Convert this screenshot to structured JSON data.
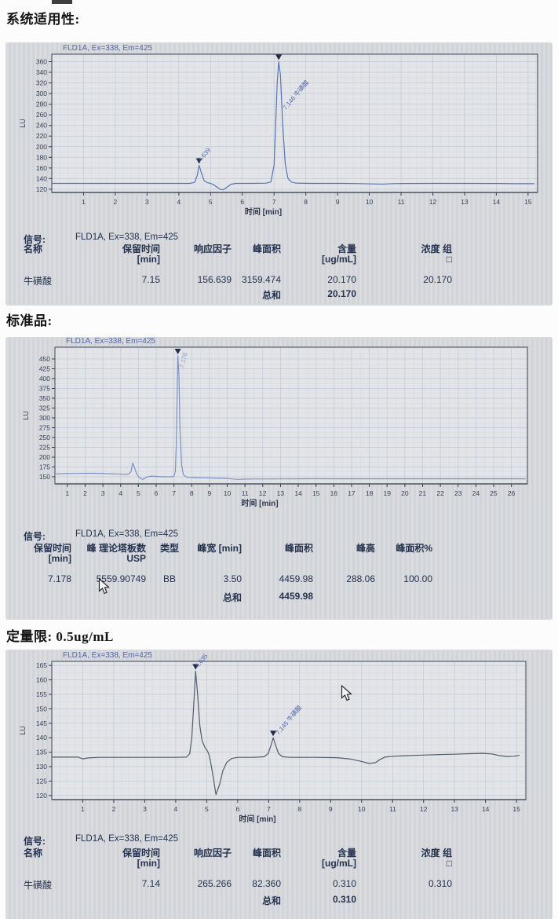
{
  "sections": [
    {
      "title": "系统适用性:"
    },
    {
      "title": "标准品:"
    },
    {
      "title": "定量限: 0.5ug/mL"
    }
  ],
  "chart_data": [
    {
      "type": "line",
      "title": "FLD1A, Ex=338, Em=425",
      "xlabel": "时间 [min]",
      "ylabel": "LU",
      "xlim": [
        0,
        15.3
      ],
      "ylim": [
        114,
        374
      ],
      "x_ticks": [
        1,
        2,
        3,
        4,
        5,
        6,
        7,
        8,
        9,
        10,
        11,
        12,
        13,
        14,
        15
      ],
      "y_ticks": [
        120,
        140,
        160,
        180,
        200,
        220,
        240,
        260,
        280,
        300,
        320,
        340,
        360
      ],
      "minor_x": 0.25,
      "minor_y": 10,
      "grid": true,
      "legend_position": "none",
      "series": [
        {
          "name": "FLD1A signal",
          "points": [
            [
              0,
              131
            ],
            [
              1,
              131
            ],
            [
              2,
              131
            ],
            [
              3,
              131
            ],
            [
              4,
              131
            ],
            [
              4.35,
              131
            ],
            [
              4.5,
              133
            ],
            [
              4.58,
              146
            ],
            [
              4.639,
              165
            ],
            [
              4.71,
              151
            ],
            [
              4.8,
              136
            ],
            [
              4.9,
              132.5
            ],
            [
              5.0,
              131
            ],
            [
              5.08,
              129
            ],
            [
              5.18,
              125
            ],
            [
              5.3,
              120
            ],
            [
              5.4,
              119
            ],
            [
              5.52,
              124
            ],
            [
              5.65,
              129.5
            ],
            [
              5.8,
              131
            ],
            [
              6.3,
              131
            ],
            [
              6.75,
              131.5
            ],
            [
              6.9,
              134
            ],
            [
              7.0,
              165
            ],
            [
              7.05,
              240
            ],
            [
              7.1,
              320
            ],
            [
              7.146,
              360
            ],
            [
              7.2,
              335
            ],
            [
              7.27,
              245
            ],
            [
              7.35,
              168
            ],
            [
              7.44,
              140
            ],
            [
              7.55,
              133.5
            ],
            [
              7.7,
              131.5
            ],
            [
              8.2,
              131
            ],
            [
              9.2,
              131
            ],
            [
              9.7,
              130.6
            ],
            [
              10.15,
              130
            ],
            [
              10.45,
              129.8
            ],
            [
              10.75,
              130.6
            ],
            [
              11.2,
              130.9
            ],
            [
              12,
              131
            ],
            [
              13,
              131
            ],
            [
              14,
              130.8
            ],
            [
              14.6,
              130.4
            ],
            [
              15.2,
              130.4
            ]
          ]
        }
      ],
      "peaks": [
        {
          "x": 4.639,
          "y": 165,
          "label": "4.639",
          "dx": 2,
          "dy": -4,
          "rot": -50,
          "faint": false
        },
        {
          "x": 7.146,
          "y": 360,
          "label": "7.146 牛磺酸",
          "dx": 9,
          "dy": 62,
          "rot": -50,
          "faint": false
        }
      ]
    },
    {
      "type": "line",
      "title": "FLD1A, Ex=338, Em=425",
      "xlabel": "时间 [min]",
      "ylabel": "LU",
      "xlim": [
        0.3,
        26.9
      ],
      "ylim": [
        132,
        480
      ],
      "x_ticks": [
        1,
        2,
        3,
        4,
        5,
        6,
        7,
        8,
        9,
        10,
        11,
        12,
        13,
        14,
        15,
        16,
        17,
        18,
        19,
        20,
        21,
        22,
        23,
        24,
        25,
        26
      ],
      "y_ticks": [
        150,
        175,
        200,
        225,
        250,
        275,
        300,
        325,
        350,
        375,
        400,
        425,
        450
      ],
      "minor_x": 0.5,
      "minor_y": 12.5,
      "grid": true,
      "legend_position": "none",
      "series": [
        {
          "name": "FLD1A signal",
          "points": [
            [
              0.3,
              157
            ],
            [
              0.8,
              158
            ],
            [
              1.5,
              158.6
            ],
            [
              2.2,
              159
            ],
            [
              2.8,
              158.8
            ],
            [
              3.4,
              157.8
            ],
            [
              4.0,
              156.6
            ],
            [
              4.3,
              156
            ],
            [
              4.45,
              157
            ],
            [
              4.58,
              163
            ],
            [
              4.68,
              185
            ],
            [
              4.78,
              173
            ],
            [
              4.9,
              158
            ],
            [
              5.0,
              150.5
            ],
            [
              5.12,
              146
            ],
            [
              5.25,
              143.5
            ],
            [
              5.4,
              147
            ],
            [
              5.55,
              150.5
            ],
            [
              5.75,
              151.8
            ],
            [
              6.0,
              151
            ],
            [
              6.4,
              150
            ],
            [
              6.8,
              150
            ],
            [
              7.0,
              151.5
            ],
            [
              7.08,
              163
            ],
            [
              7.13,
              230
            ],
            [
              7.18,
              360
            ],
            [
              7.22,
              458
            ],
            [
              7.28,
              410
            ],
            [
              7.34,
              270
            ],
            [
              7.43,
              180
            ],
            [
              7.53,
              156
            ],
            [
              7.66,
              150
            ],
            [
              7.82,
              148.5
            ],
            [
              8.1,
              148
            ],
            [
              8.6,
              147.4
            ],
            [
              9.2,
              146.8
            ],
            [
              9.9,
              146
            ],
            [
              10.25,
              144.6
            ],
            [
              10.55,
              143.6
            ],
            [
              10.85,
              144
            ],
            [
              11.3,
              144.4
            ],
            [
              12,
              144.5
            ],
            [
              13,
              144.7
            ],
            [
              14,
              144.9
            ],
            [
              15,
              145
            ],
            [
              16,
              144.8
            ],
            [
              17.5,
              144.8
            ],
            [
              19,
              144.8
            ],
            [
              21,
              144.8
            ],
            [
              23,
              144.8
            ],
            [
              25,
              144.8
            ],
            [
              26.8,
              144.8
            ]
          ]
        }
      ],
      "peaks": [
        {
          "x": 7.22,
          "y": 458,
          "label": "7.178",
          "dx": 7,
          "dy": 16,
          "rot": -75,
          "faint": true
        }
      ]
    },
    {
      "type": "line",
      "title": "FLD1A, Ex=338, Em=425",
      "xlabel": "时间 [min]",
      "ylabel": "LU",
      "xlim": [
        0,
        15.3
      ],
      "ylim": [
        118.6,
        166.4
      ],
      "x_ticks": [
        1,
        2,
        3,
        4,
        5,
        6,
        7,
        8,
        9,
        10,
        11,
        12,
        13,
        14,
        15
      ],
      "y_ticks": [
        120,
        125,
        130,
        135,
        140,
        145,
        150,
        155,
        160,
        165
      ],
      "minor_x": 0.25,
      "minor_y": 2.5,
      "grid": true,
      "legend_position": "none",
      "series": [
        {
          "name": "FLD1A signal",
          "points": [
            [
              0,
              133.3
            ],
            [
              0.85,
              133.3
            ],
            [
              1.0,
              132.7
            ],
            [
              1.15,
              133
            ],
            [
              1.5,
              133.2
            ],
            [
              2,
              133.2
            ],
            [
              3,
              133.2
            ],
            [
              4,
              133.2
            ],
            [
              4.35,
              133.3
            ],
            [
              4.45,
              134.5
            ],
            [
              4.52,
              140
            ],
            [
              4.6,
              155
            ],
            [
              4.64,
              163
            ],
            [
              4.7,
              156
            ],
            [
              4.78,
              144
            ],
            [
              4.85,
              139
            ],
            [
              4.95,
              136.5
            ],
            [
              5.02,
              135.5
            ],
            [
              5.08,
              134
            ],
            [
              5.12,
              132
            ],
            [
              5.2,
              127
            ],
            [
              5.3,
              120.3
            ],
            [
              5.42,
              124
            ],
            [
              5.52,
              128.5
            ],
            [
              5.65,
              131.5
            ],
            [
              5.8,
              132.8
            ],
            [
              6,
              133.2
            ],
            [
              6.5,
              133.2
            ],
            [
              6.85,
              133.4
            ],
            [
              6.98,
              134.5
            ],
            [
              7.08,
              137.5
            ],
            [
              7.145,
              140
            ],
            [
              7.22,
              137.5
            ],
            [
              7.32,
              134.5
            ],
            [
              7.45,
              133.4
            ],
            [
              7.7,
              133.2
            ],
            [
              8.5,
              133.2
            ],
            [
              9.2,
              133.1
            ],
            [
              9.6,
              132.7
            ],
            [
              10.0,
              131.8
            ],
            [
              10.25,
              131.1
            ],
            [
              10.45,
              131.4
            ],
            [
              10.6,
              132.5
            ],
            [
              10.75,
              133.3
            ],
            [
              11,
              133.6
            ],
            [
              11.5,
              133.8
            ],
            [
              12,
              134
            ],
            [
              12.5,
              134.2
            ],
            [
              13,
              134.3
            ],
            [
              13.5,
              134.5
            ],
            [
              13.9,
              134.6
            ],
            [
              14.2,
              134.4
            ],
            [
              14.45,
              133.8
            ],
            [
              14.7,
              133.5
            ],
            [
              14.9,
              133.6
            ],
            [
              15.1,
              133.9
            ]
          ]
        }
      ],
      "peaks": [
        {
          "x": 4.64,
          "y": 163,
          "label": "4.635",
          "dx": 3,
          "dy": -4,
          "rot": -50,
          "faint": false
        },
        {
          "x": 7.145,
          "y": 140,
          "label": "7.145 牛磺酸",
          "dx": 7,
          "dy": -3,
          "rot": -50,
          "faint": false
        }
      ]
    }
  ],
  "tables": [
    {
      "signal_label": "信号:",
      "signal_value": "FLD1A, Ex=338,  Em=425",
      "headers": [
        [
          "名称",
          ""
        ],
        [
          "保留时间",
          "[min]"
        ],
        [
          "响应因子",
          ""
        ],
        [
          "峰面积",
          ""
        ],
        [
          "含量",
          "[ug/mL]"
        ],
        [
          "浓度 组",
          "□"
        ]
      ],
      "row": [
        "牛磺酸",
        "7.15",
        "156.639",
        "3159.474",
        "20.170",
        "20.170"
      ],
      "sum_label": "总和",
      "sum_value": "20.170"
    },
    {
      "signal_label": "信号:",
      "signal_value": "FLD1A, Ex=338,  Em=425",
      "headers": [
        [
          "保留时间",
          "[min]"
        ],
        [
          "峰 理论塔板数",
          "USP"
        ],
        [
          "类型",
          ""
        ],
        [
          "峰宽 [min]",
          ""
        ],
        [
          "峰面积",
          ""
        ],
        [
          "峰高",
          ""
        ],
        [
          "峰面积%",
          ""
        ]
      ],
      "row": [
        "7.178",
        "5559.90749",
        "BB",
        "3.50",
        "4459.98",
        "288.06",
        "100.00"
      ],
      "sum_label": "总和",
      "sum_value": "4459.98"
    },
    {
      "signal_label": "信号:",
      "signal_value": "FLD1A, Ex=338,  Em=425",
      "headers": [
        [
          "名称",
          ""
        ],
        [
          "保留时间",
          "[min]"
        ],
        [
          "响应因子",
          ""
        ],
        [
          "峰面积",
          ""
        ],
        [
          "含量",
          "[ug/mL]"
        ],
        [
          "浓度 组",
          "□"
        ]
      ],
      "row": [
        "牛磺酸",
        "7.14",
        "265.266",
        "82.360",
        "0.310",
        "0.310"
      ],
      "sum_label": "总和",
      "sum_value": "0.310"
    }
  ],
  "colors": {
    "trace1": "#5a74b5",
    "trace2": "#7b92c4",
    "trace3": "#525c6b",
    "annotation_blue": "#5268a8",
    "table_text": "#25334f",
    "photo_bg": "#d7d9dd",
    "plot_bg": "#e2e4e8"
  }
}
